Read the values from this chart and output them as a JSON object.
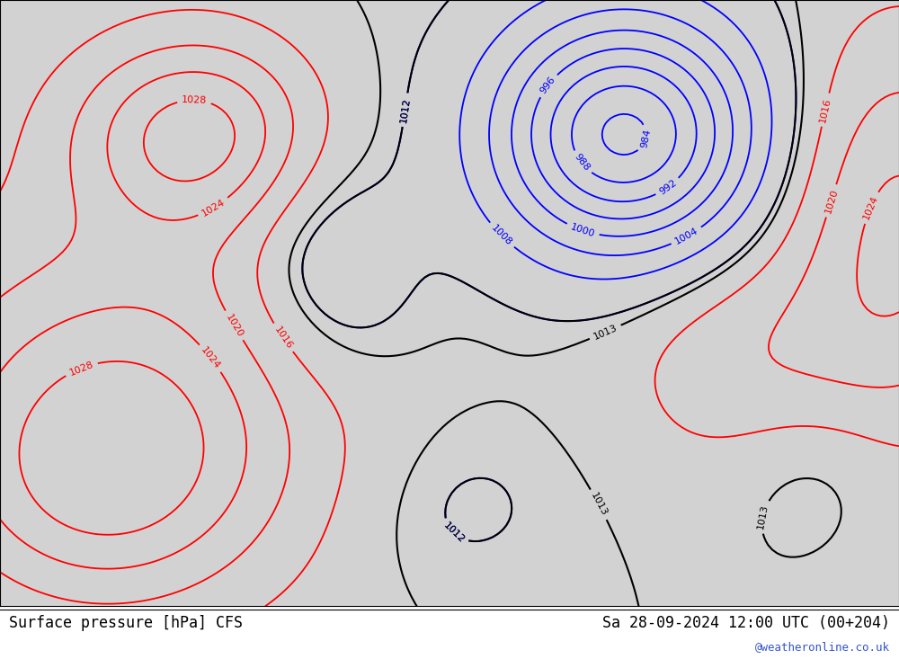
{
  "title_left": "Surface pressure [hPa] CFS",
  "title_right": "Sa 28-09-2024 12:00 UTC (00+204)",
  "watermark": "@weatheronline.co.uk",
  "ocean_color": "#d2d2d2",
  "land_color": "#c8e8c0",
  "coast_color": "#999999",
  "border_color": "#aaaaaa",
  "extent": [
    -30,
    42,
    27,
    72
  ],
  "grid_lon": 200,
  "grid_lat": 150,
  "gaussians": [
    {
      "lon0": -14,
      "lat0": 62,
      "amp": 17,
      "sx": 7,
      "sy": 5
    },
    {
      "lon0": -20,
      "lat0": 42,
      "amp": 14,
      "sx": 12,
      "sy": 9
    },
    {
      "lon0": -22,
      "lat0": 35,
      "amp": 8,
      "sx": 8,
      "sy": 6
    },
    {
      "lon0": 42,
      "lat0": 55,
      "amp": 12,
      "sx": 6,
      "sy": 10
    },
    {
      "lon0": 30,
      "lat0": 45,
      "amp": 6,
      "sx": 7,
      "sy": 6
    },
    {
      "lon0": 20,
      "lat0": 62,
      "amp": -30,
      "sx": 7,
      "sy": 6
    },
    {
      "lon0": -5,
      "lat0": 55,
      "amp": -5,
      "sx": 5,
      "sy": 8
    },
    {
      "lon0": -3,
      "lat0": 48,
      "amp": -2,
      "sx": 6,
      "sy": 5
    },
    {
      "lon0": 5,
      "lat0": 35,
      "amp": -2,
      "sx": 7,
      "sy": 5
    },
    {
      "lon0": 35,
      "lat0": 38,
      "amp": -3,
      "sx": 5,
      "sy": 4
    }
  ],
  "base_pressure": 1013.0,
  "red_levels": [
    1016,
    1020,
    1024,
    1028
  ],
  "blue_levels": [
    984,
    988,
    992,
    996,
    1000,
    1004,
    1008,
    1012
  ],
  "black_levels": [
    1012,
    1013
  ],
  "label_fontsize": 8,
  "title_fontsize": 12
}
